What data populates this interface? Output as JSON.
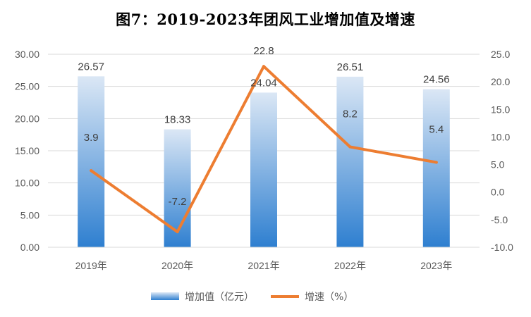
{
  "chart_data": {
    "type": "bar+line",
    "title": "图7：2019-2023年团风工业增加值及增速",
    "categories": [
      "2019年",
      "2020年",
      "2021年",
      "2022年",
      "2023年"
    ],
    "series": [
      {
        "name": "增加值（亿元）",
        "type": "bar",
        "axis": "left",
        "values": [
          26.57,
          18.33,
          24.04,
          26.51,
          24.56
        ],
        "labels": [
          "26.57",
          "18.33",
          "24.04",
          "26.51",
          "24.56"
        ]
      },
      {
        "name": "增速（%）",
        "type": "line",
        "axis": "right",
        "values": [
          3.9,
          -7.2,
          22.8,
          8.2,
          5.4
        ],
        "labels": [
          "3.9",
          "-7.2",
          "22.8",
          "8.2",
          "5.4"
        ]
      }
    ],
    "y_left": {
      "min": 0,
      "max": 30,
      "step": 5,
      "ticks": [
        "0.00",
        "5.00",
        "10.00",
        "15.00",
        "20.00",
        "25.00",
        "30.00"
      ]
    },
    "y_right": {
      "min": -10,
      "max": 25,
      "step": 5,
      "ticks": [
        "-10.0",
        "-5.0",
        "0.0",
        "5.0",
        "10.0",
        "15.0",
        "20.0",
        "25.0"
      ]
    },
    "legend_position": "bottom",
    "colors": {
      "bar_top": "#dbe7f5",
      "bar_bottom": "#2e7fd0",
      "line": "#ed7d31"
    }
  }
}
